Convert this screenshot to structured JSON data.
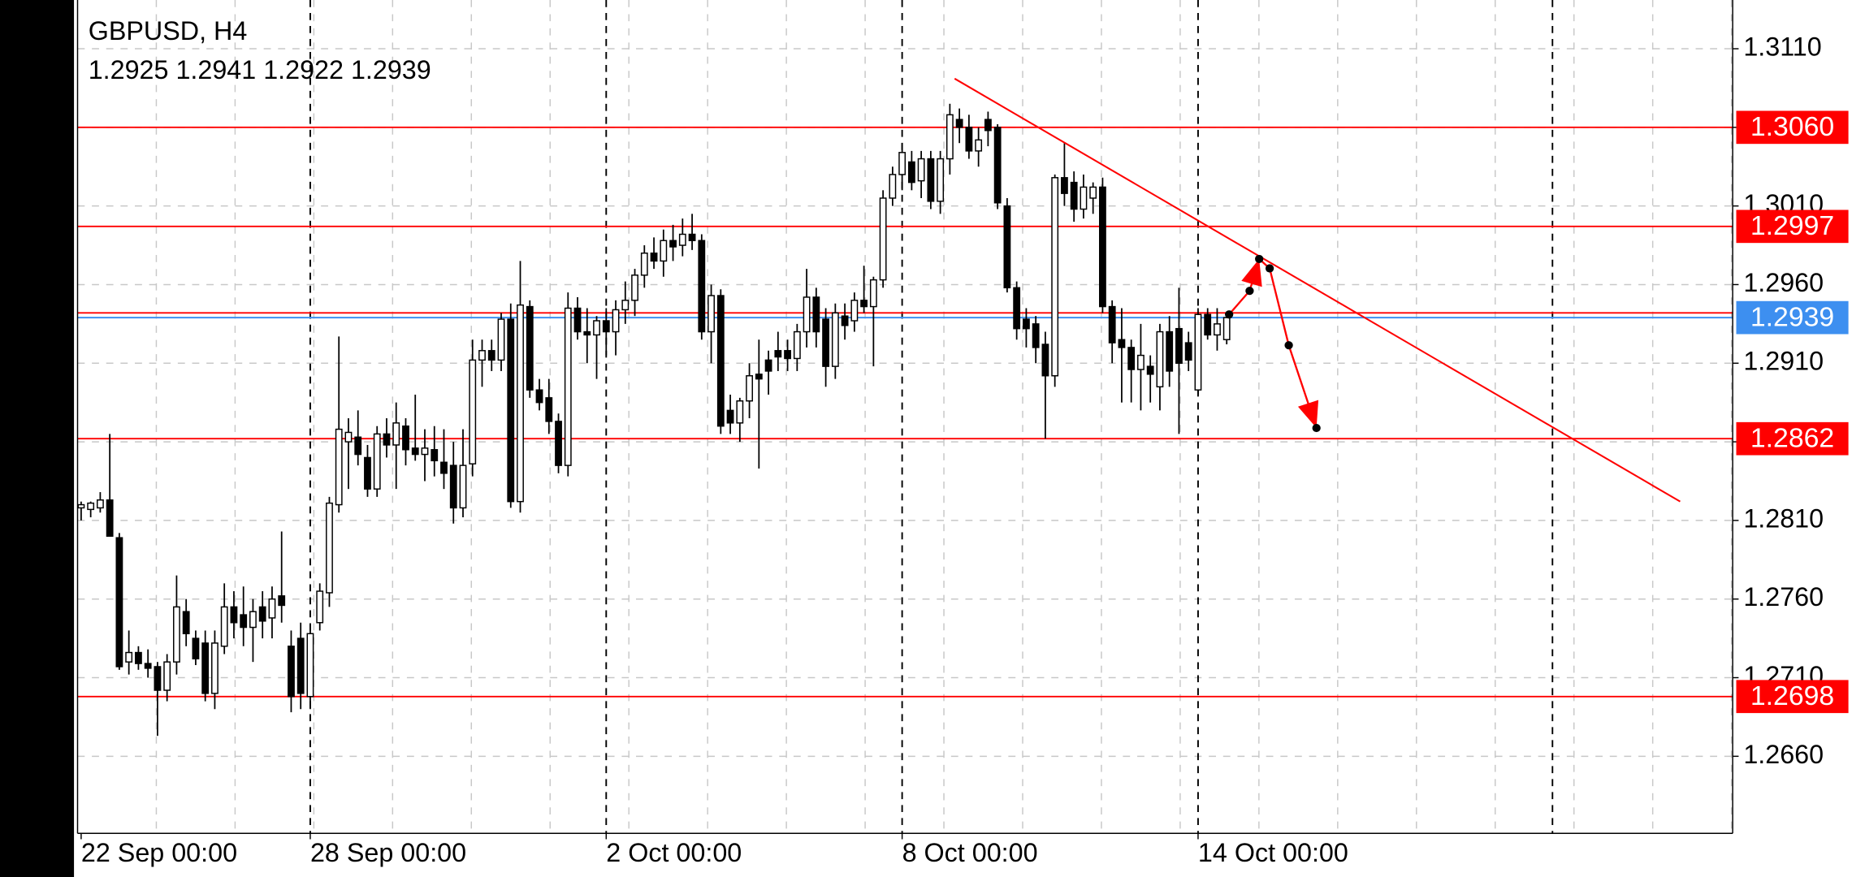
{
  "chart_data": {
    "type": "candlestick",
    "title": "GBPUSD, H4",
    "subtitle": "1.2925 1.2941 1.2922 1.2939",
    "candles": {
      "open": [
        1.2818,
        1.2817,
        1.2818,
        1.2823,
        1.2799,
        1.272,
        1.2726,
        1.2719,
        1.2717,
        1.2702,
        1.272,
        1.2752,
        1.2735,
        1.2732,
        1.27,
        1.273,
        1.2755,
        1.275,
        1.2742,
        1.2755,
        1.2748,
        1.2762,
        1.273,
        1.2735,
        1.2698,
        1.2745,
        1.2764,
        1.282,
        1.286,
        1.2863,
        1.285,
        1.283,
        1.2865,
        1.2858,
        1.287,
        1.2856,
        1.2852,
        1.2855,
        1.2847,
        1.2845,
        1.2818,
        1.2846,
        1.2912,
        1.2918,
        1.2912,
        1.2938,
        1.2822,
        1.2946,
        1.2893,
        1.2888,
        1.2873,
        1.2845,
        1.2945,
        1.293,
        1.2928,
        1.2937,
        1.293,
        1.2944,
        1.295,
        1.2966,
        1.298,
        1.2975,
        1.2988,
        1.2985,
        1.2992,
        1.2988,
        1.293,
        1.2953,
        1.288,
        1.2872,
        1.2886,
        1.2903,
        1.2912,
        1.2918,
        1.2918,
        1.2913,
        1.293,
        1.2952,
        1.2938,
        1.2908,
        1.294,
        1.2937,
        1.295,
        1.2946,
        1.2963,
        1.3015,
        1.303,
        1.3038,
        1.3026,
        1.304,
        1.3013,
        1.304,
        1.3065,
        1.306,
        1.3045,
        1.3065,
        1.306,
        1.301,
        1.2958,
        1.2938,
        1.2935,
        1.2922,
        1.2902,
        1.3028,
        1.3025,
        1.3008,
        1.3015,
        1.3022,
        1.2946,
        1.2925,
        1.292,
        1.2906,
        1.2908,
        1.2895,
        1.293,
        1.2932,
        1.2923,
        1.2893,
        1.2941,
        1.2928,
        1.2925
      ],
      "high": [
        1.2822,
        1.2822,
        1.2828,
        1.2865,
        1.2802,
        1.274,
        1.273,
        1.2728,
        1.272,
        1.2725,
        1.2775,
        1.276,
        1.274,
        1.274,
        1.274,
        1.277,
        1.2765,
        1.2768,
        1.276,
        1.2765,
        1.2768,
        1.2803,
        1.274,
        1.2745,
        1.2742,
        1.277,
        1.2825,
        1.2927,
        1.2875,
        1.288,
        1.2858,
        1.287,
        1.2875,
        1.2885,
        1.2875,
        1.289,
        1.2868,
        1.287,
        1.2868,
        1.286,
        1.2868,
        1.2925,
        1.2925,
        1.2925,
        1.2942,
        1.2948,
        1.2975,
        1.295,
        1.29,
        1.29,
        1.2878,
        1.2955,
        1.2952,
        1.2945,
        1.294,
        1.2945,
        1.295,
        1.2962,
        1.297,
        1.2985,
        1.299,
        1.2995,
        1.2998,
        1.3002,
        1.3005,
        1.2992,
        1.296,
        1.2957,
        1.289,
        1.2888,
        1.291,
        1.2925,
        1.2918,
        1.293,
        1.2925,
        1.2935,
        1.297,
        1.2958,
        1.2945,
        1.2948,
        1.2948,
        1.2955,
        1.2972,
        1.2965,
        1.302,
        1.3035,
        1.305,
        1.3045,
        1.3045,
        1.3045,
        1.3045,
        1.3075,
        1.3072,
        1.3068,
        1.306,
        1.307,
        1.3062,
        1.3015,
        1.2962,
        1.2945,
        1.294,
        1.293,
        1.303,
        1.305,
        1.3032,
        1.303,
        1.3025,
        1.3028,
        1.295,
        1.2945,
        1.2925,
        1.2935,
        1.2915,
        1.2935,
        1.294,
        1.2958,
        1.293,
        1.2945,
        1.2945,
        1.2945,
        1.2941
      ],
      "low": [
        1.281,
        1.2812,
        1.2815,
        1.28,
        1.2715,
        1.2712,
        1.2715,
        1.271,
        1.2673,
        1.2695,
        1.2712,
        1.273,
        1.2718,
        1.2695,
        1.269,
        1.2725,
        1.2735,
        1.273,
        1.272,
        1.2735,
        1.2735,
        1.2745,
        1.2688,
        1.269,
        1.269,
        1.274,
        1.2755,
        1.2815,
        1.283,
        1.2845,
        1.2825,
        1.2825,
        1.285,
        1.283,
        1.2845,
        1.2848,
        1.2835,
        1.2838,
        1.283,
        1.2808,
        1.2812,
        1.2838,
        1.2895,
        1.2905,
        1.2905,
        1.2818,
        1.2815,
        1.2888,
        1.288,
        1.2865,
        1.284,
        1.2838,
        1.2925,
        1.291,
        1.29,
        1.2915,
        1.2915,
        1.2935,
        1.294,
        1.2958,
        1.297,
        1.2965,
        1.2975,
        1.2978,
        1.2982,
        1.2925,
        1.291,
        1.2865,
        1.2865,
        1.286,
        1.2875,
        1.2843,
        1.289,
        1.2905,
        1.2905,
        1.2905,
        1.292,
        1.292,
        1.2895,
        1.29,
        1.2925,
        1.293,
        1.2942,
        1.2908,
        1.2958,
        1.301,
        1.302,
        1.302,
        1.3015,
        1.3008,
        1.3005,
        1.303,
        1.305,
        1.304,
        1.3035,
        1.3048,
        1.3008,
        1.2955,
        1.2925,
        1.292,
        1.291,
        1.2862,
        1.2895,
        1.301,
        1.3,
        1.3002,
        1.3005,
        1.2942,
        1.291,
        1.2885,
        1.2885,
        1.288,
        1.2885,
        1.288,
        1.2895,
        1.2865,
        1.2905,
        1.289,
        1.2925,
        1.2918,
        1.2922
      ],
      "close": [
        1.282,
        1.2821,
        1.2823,
        1.28,
        1.2717,
        1.2726,
        1.2719,
        1.2716,
        1.2702,
        1.272,
        1.2755,
        1.2738,
        1.2722,
        1.27,
        1.2732,
        1.2755,
        1.2745,
        1.2742,
        1.2752,
        1.2746,
        1.276,
        1.2756,
        1.2698,
        1.27,
        1.2738,
        1.2765,
        1.2821,
        1.2868,
        1.2866,
        1.2852,
        1.283,
        1.2865,
        1.2858,
        1.2872,
        1.2855,
        1.2852,
        1.2856,
        1.2848,
        1.284,
        1.2818,
        1.2845,
        1.2912,
        1.2918,
        1.2912,
        1.2938,
        1.2822,
        1.2947,
        1.2893,
        1.2885,
        1.2873,
        1.2845,
        1.2945,
        1.293,
        1.2928,
        1.2937,
        1.293,
        1.2944,
        1.295,
        1.2966,
        1.298,
        1.2975,
        1.2988,
        1.2984,
        1.2992,
        1.2988,
        1.293,
        1.2953,
        1.287,
        1.2872,
        1.2886,
        1.2902,
        1.29,
        1.2905,
        1.2914,
        1.2913,
        1.293,
        1.2952,
        1.293,
        1.2908,
        1.2942,
        1.2934,
        1.295,
        1.2946,
        1.2963,
        1.3015,
        1.303,
        1.3044,
        1.3025,
        1.304,
        1.3013,
        1.304,
        1.3068,
        1.306,
        1.3045,
        1.3052,
        1.3058,
        1.3012,
        1.2958,
        1.2932,
        1.2932,
        1.292,
        1.2902,
        1.3028,
        1.3018,
        1.3008,
        1.3022,
        1.3022,
        1.2946,
        1.2923,
        1.292,
        1.2906,
        1.2915,
        1.2903,
        1.293,
        1.2905,
        1.291,
        1.2912,
        1.2941,
        1.2928,
        1.2935,
        1.2939
      ]
    },
    "bull_color": "#ffffff",
    "bear_color": "#000000",
    "xlim": [
      -0.375,
      173
    ],
    "xticks": [
      {
        "value": 0,
        "label": "22 Sep 00:00"
      },
      {
        "value": 24,
        "label": "28 Sep 00:00"
      },
      {
        "value": 55,
        "label": "2 Oct 00:00"
      },
      {
        "value": 86,
        "label": "8 Oct 00:00"
      },
      {
        "value": 117,
        "label": "14 Oct 00:00"
      }
    ],
    "ylim": [
      1.2611,
      1.3141
    ],
    "yticks": [
      {
        "value": 1.311,
        "label": "1.3110"
      },
      {
        "value": 1.306,
        "label": "1.3060"
      },
      {
        "value": 1.301,
        "label": "1.3010"
      },
      {
        "value": 1.296,
        "label": "1.2960"
      },
      {
        "value": 1.291,
        "label": "1.2910"
      },
      {
        "value": 1.286,
        "label": "1.2860"
      },
      {
        "value": 1.281,
        "label": "1.2810"
      },
      {
        "value": 1.276,
        "label": "1.2760"
      },
      {
        "value": 1.271,
        "label": "1.2710"
      },
      {
        "value": 1.266,
        "label": "1.2660"
      }
    ],
    "grid": true,
    "level_color": "#ff0000",
    "levels": [
      {
        "value": 1.306,
        "label": "1.3060"
      },
      {
        "value": 1.2997,
        "label": "1.2997"
      },
      {
        "value": 1.2862,
        "label": "1.2862"
      },
      {
        "value": 1.2698,
        "label": "1.2698"
      }
    ],
    "plain_levels": [
      1.2942
    ],
    "bid": {
      "value": 1.2939,
      "label": "1.2939"
    },
    "bid_color": "#3d8ff0",
    "trendline": {
      "x": [
        91.5,
        167.5
      ],
      "y": [
        1.3091,
        1.2822
      ]
    },
    "projection": {
      "x": [
        120.25,
        122.4,
        123.4,
        124.5,
        126.5,
        129.4
      ],
      "y": [
        1.2941,
        1.2956,
        1.29763,
        1.29703,
        1.29214,
        1.28688
      ]
    }
  }
}
